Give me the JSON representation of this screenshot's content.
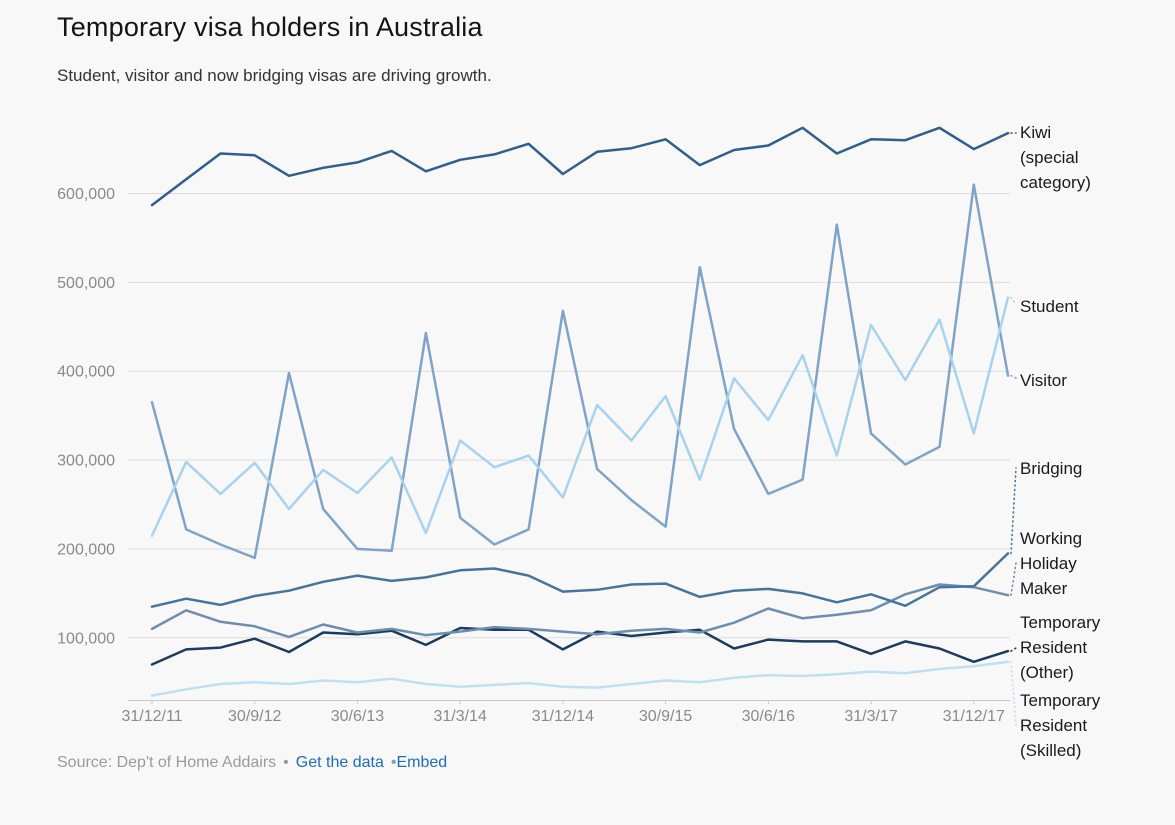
{
  "header": {
    "title": "Temporary visa holders in Australia",
    "subtitle": "Student, visitor and now bridging visas are driving growth."
  },
  "footer": {
    "source_label": "Source: Dep't of Home Addairs",
    "bullet": "•",
    "link_get_data": "Get the data",
    "link_embed": "Embed"
  },
  "colors": {
    "background": "#f8f8f8",
    "gridline": "#dddddd",
    "axis_baseline": "#c9c9c9",
    "axis_text": "#8a8a8a",
    "label_text": "#1a1a1a",
    "link": "#1c6cc5"
  },
  "chart_data": {
    "type": "line",
    "title": "Temporary visa holders in Australia",
    "subtitle": "Student, visitor and now bridging visas are driving growth.",
    "xlabel": "",
    "ylabel": "",
    "grid": "horizontal",
    "legend_position": "right-direct-labels",
    "n_points": 26,
    "x_frequency": "quarterly",
    "x_tick_labels": [
      "31/12/11",
      "30/9/12",
      "30/6/13",
      "31/3/14",
      "31/12/14",
      "30/9/15",
      "30/6/16",
      "31/3/17",
      "31/12/17"
    ],
    "x_tick_indices": [
      0,
      3,
      6,
      9,
      12,
      15,
      18,
      21,
      24
    ],
    "y_ticks": [
      100000,
      200000,
      300000,
      400000,
      500000,
      600000
    ],
    "y_tick_labels": [
      "100,000",
      "200,000",
      "300,000",
      "400,000",
      "500,000",
      "600,000"
    ],
    "ylim": [
      30000,
      685000
    ],
    "series": [
      {
        "name": "Kiwi (special category)",
        "label_lines": [
          "Kiwi",
          "(special",
          "category)"
        ],
        "color": "#2f5f8f",
        "values": [
          587000,
          616000,
          645000,
          643000,
          620000,
          629000,
          635000,
          648000,
          625000,
          638000,
          644000,
          656000,
          622000,
          647000,
          651000,
          661000,
          632000,
          649000,
          654000,
          674000,
          645000,
          661000,
          660000,
          674000,
          650000,
          668000
        ]
      },
      {
        "name": "Student",
        "label_lines": [
          "Student"
        ],
        "color": "#a7d2f0",
        "values": [
          215000,
          298000,
          262000,
          297000,
          245000,
          289000,
          263000,
          303000,
          218000,
          322000,
          292000,
          305000,
          258000,
          362000,
          322000,
          372000,
          278000,
          392000,
          345000,
          418000,
          305000,
          452000,
          390000,
          458000,
          330000,
          483000
        ]
      },
      {
        "name": "Visitor",
        "label_lines": [
          "Visitor"
        ],
        "color": "#7fa3c9",
        "values": [
          365000,
          222000,
          205000,
          190000,
          398000,
          245000,
          200000,
          198000,
          443000,
          235000,
          205000,
          222000,
          468000,
          290000,
          255000,
          225000,
          517000,
          335000,
          262000,
          278000,
          565000,
          330000,
          295000,
          315000,
          610000,
          395000
        ]
      },
      {
        "name": "Bridging",
        "label_lines": [
          "Bridging"
        ],
        "color": "#46749f",
        "values": [
          135000,
          144000,
          137000,
          147000,
          153000,
          163000,
          170000,
          164000,
          168000,
          176000,
          178000,
          170000,
          152000,
          154000,
          160000,
          161000,
          146000,
          153000,
          155000,
          150000,
          140000,
          149000,
          136000,
          157000,
          158000,
          195000
        ]
      },
      {
        "name": "Working Holiday Maker",
        "label_lines": [
          "Working",
          "Holiday",
          "Maker"
        ],
        "color": "#6d8eae",
        "values": [
          110000,
          131000,
          118000,
          113000,
          101000,
          115000,
          106000,
          110000,
          103000,
          107000,
          112000,
          110000,
          107000,
          104000,
          108000,
          110000,
          106000,
          117000,
          133000,
          122000,
          126000,
          131000,
          149000,
          160000,
          157000,
          148000
        ]
      },
      {
        "name": "Temporary Resident (Other)",
        "label_lines": [
          "Temporary",
          "Resident",
          "(Other)"
        ],
        "color": "#1b3c5f",
        "values": [
          70000,
          87000,
          89000,
          99000,
          84000,
          106000,
          104000,
          108000,
          92000,
          111000,
          109000,
          109000,
          87000,
          107000,
          102000,
          106000,
          109000,
          88000,
          98000,
          96000,
          96000,
          82000,
          96000,
          88000,
          73000,
          85000
        ]
      },
      {
        "name": "Temporary Resident (Skilled)",
        "label_lines": [
          "Temporary",
          "Resident",
          "(Skilled)"
        ],
        "color": "#bfdff5",
        "values": [
          35000,
          42000,
          48000,
          50000,
          48000,
          52000,
          50000,
          54000,
          48000,
          45000,
          47000,
          49000,
          45000,
          44000,
          48000,
          52000,
          50000,
          55000,
          58000,
          57000,
          59000,
          62000,
          60000,
          65000,
          68000,
          73000
        ]
      }
    ]
  }
}
